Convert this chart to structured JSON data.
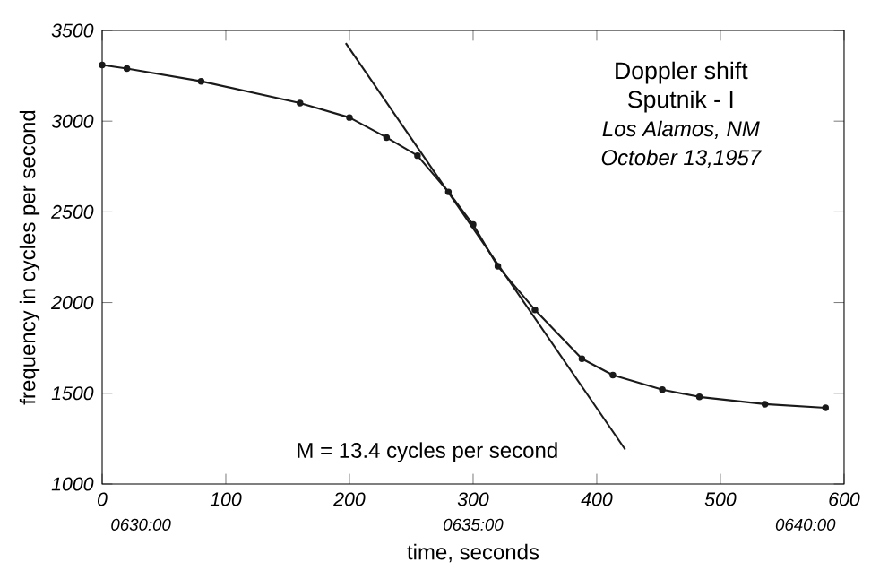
{
  "chart_data": {
    "type": "line",
    "title": "Doppler shift",
    "subtitle": "Sputnik - I",
    "xlabel": "time, seconds",
    "ylabel": "frequency in cycles per second",
    "annotations": [
      "Los Alamos, NM",
      "October 13,1957",
      "M = 13.4 cycles per second",
      "0630:00",
      "0635:00",
      "0640:00"
    ],
    "xlim": [
      0,
      600
    ],
    "xticks": [
      0,
      100,
      200,
      300,
      400,
      500,
      600
    ],
    "ylim": [
      1000,
      3500
    ],
    "yticks": [
      1000,
      1500,
      2000,
      2500,
      3000,
      3500
    ],
    "series": [
      {
        "color": "#1a1a1a",
        "marker": "circle",
        "x": [
          0,
          20,
          80,
          160,
          200,
          230,
          255,
          280,
          300,
          320,
          350,
          388,
          413,
          453,
          483,
          536,
          585
        ],
        "values": [
          3310,
          3290,
          3220,
          3100,
          3020,
          2910,
          2810,
          2610,
          2430,
          2200,
          1960,
          1690,
          1600,
          1520,
          1480,
          1440,
          1420
        ]
      },
      {
        "color": "#1a1a1a",
        "marker": "none",
        "x": [
          197,
          423
        ],
        "values": [
          3430,
          1190
        ]
      }
    ]
  }
}
